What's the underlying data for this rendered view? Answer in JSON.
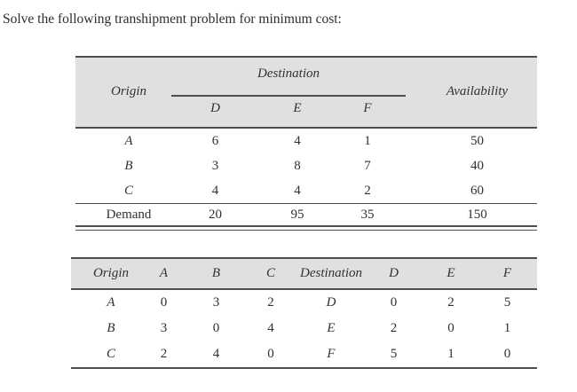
{
  "page": {
    "title": "Solve the following transhipment problem for minimum cost:"
  },
  "colors": {
    "header_bg": "#e0e0e0",
    "rule": "#4e4e4e",
    "text": "#2e3036"
  },
  "table1": {
    "header": {
      "origin": "Origin",
      "destination": "Destination",
      "availability": "Availability",
      "dest_cols": [
        "D",
        "E",
        "F"
      ]
    },
    "rows": [
      {
        "origin": "A",
        "costs": [
          "6",
          "4",
          "1"
        ],
        "availability": "50"
      },
      {
        "origin": "B",
        "costs": [
          "3",
          "8",
          "7"
        ],
        "availability": "40"
      },
      {
        "origin": "C",
        "costs": [
          "4",
          "4",
          "2"
        ],
        "availability": "60"
      }
    ],
    "demand": {
      "label": "Demand",
      "values": [
        "20",
        "95",
        "35"
      ],
      "total": "150"
    }
  },
  "table2": {
    "header": [
      "Origin",
      "A",
      "B",
      "C",
      "Destination",
      "D",
      "E",
      "F"
    ],
    "rows": [
      [
        "A",
        "0",
        "3",
        "2",
        "D",
        "0",
        "2",
        "5"
      ],
      [
        "B",
        "3",
        "0",
        "4",
        "E",
        "2",
        "0",
        "1"
      ],
      [
        "C",
        "2",
        "4",
        "0",
        "F",
        "5",
        "1",
        "0"
      ]
    ]
  }
}
